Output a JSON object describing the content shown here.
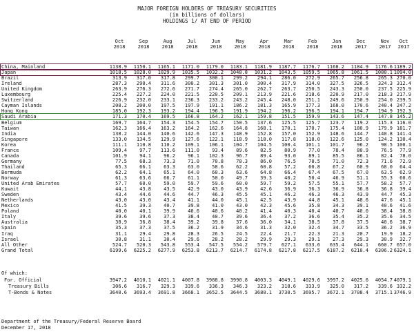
{
  "title_line1": "MAJOR FOREIGN HOLDERS OF TREASURY SECURITIES",
  "title_line2": "(in billions of dollars)",
  "title_line3": "HOLDINGS 1/ AT END OF PERIOD",
  "months": [
    "Oct",
    "Sep",
    "Aug",
    "Jul",
    "Jun",
    "May",
    "Apr",
    "Mar",
    "Feb",
    "Jan",
    "Dec",
    "Nov",
    "Oct"
  ],
  "years": [
    "2018",
    "2018",
    "2018",
    "2018",
    "2018",
    "2018",
    "2018",
    "2018",
    "2018",
    "2018",
    "2017",
    "2017",
    "2017"
  ],
  "highlight_colors": {
    "China, Mainland": "#6b1b46",
    "Japan": "#6b1b46",
    "Saudi Arabia": "#3e8a3e"
  },
  "rows": [
    {
      "label": "China, Mainland",
      "values": [
        "1138.9",
        "1150.1",
        "1165.1",
        "1171.0",
        "1179.0",
        "1183.1",
        "1181.9",
        "1187.7",
        "1176.7",
        "1168.2",
        "1184.9",
        "1176.6",
        "1189.2"
      ]
    },
    {
      "label": "Japan",
      "values": [
        "1018.5",
        "1028.0",
        "1029.9",
        "1035.5",
        "1032.2",
        "1048.8",
        "1031.2",
        "1043.5",
        "1059.5",
        "1065.8",
        "1061.5",
        "1080.1",
        "1094.0"
      ]
    },
    {
      "label": "Brazil",
      "values": [
        "313.9",
        "317.0",
        "317.8",
        "299.7",
        "300.1",
        "299.2",
        "294.1",
        "286.0",
        "272.9",
        "265.7",
        "256.8",
        "265.3",
        "270.0"
      ]
    },
    {
      "label": "Ireland",
      "values": [
        "287.3",
        "290.4",
        "311.6",
        "300.2",
        "301.3",
        "301.0",
        "300.4",
        "317.9",
        "314.0",
        "327.5",
        "326.5",
        "324.3",
        "312.4"
      ]
    },
    {
      "label": "United Kingdom",
      "values": [
        "263.9",
        "276.3",
        "272.6",
        "271.7",
        "274.4",
        "265.0",
        "262.7",
        "263.7",
        "250.5",
        "243.3",
        "250.0",
        "237.5",
        "225.9"
      ]
    },
    {
      "label": "Luxembourg",
      "values": [
        "225.4",
        "227.2",
        "224.0",
        "221.5",
        "220.5",
        "209.1",
        "213.9",
        "221.6",
        "218.6",
        "220.9",
        "217.0",
        "218.3",
        "217.9"
      ]
    },
    {
      "label": "Switzerland",
      "values": [
        "226.9",
        "232.0",
        "233.1",
        "236.3",
        "233.2",
        "243.2",
        "245.4",
        "248.0",
        "251.1",
        "249.6",
        "250.9",
        "254.0",
        "239.5"
      ]
    },
    {
      "label": "Cayman Islands",
      "values": [
        "208.2",
        "200.0",
        "197.5",
        "197.9",
        "191.1",
        "186.2",
        "181.3",
        "165.9",
        "177.3",
        "168.0",
        "170.6",
        "240.4",
        "247.2"
      ]
    },
    {
      "label": "Hong Kong",
      "values": [
        "185.0",
        "192.3",
        "193.2",
        "194.4",
        "196.5",
        "191.9",
        "194.2",
        "196.2",
        "196.5",
        "194.1",
        "194.7",
        "194.9",
        "192.3"
      ]
    },
    {
      "label": "Saudi Arabia",
      "values": [
        "171.3",
        "170.4",
        "169.5",
        "166.8",
        "164.2",
        "162.1",
        "159.8",
        "151.5",
        "159.9",
        "143.6",
        "147.4",
        "147.8",
        "145.2"
      ]
    },
    {
      "label": "Belgium",
      "values": [
        "169.7",
        "164.7",
        "154.3",
        "154.5",
        "154.7",
        "150.5",
        "137.6",
        "125.5",
        "125.7",
        "123.7",
        "119.2",
        "115.3",
        "116.0"
      ]
    },
    {
      "label": "Taiwan",
      "values": [
        "162.3",
        "166.4",
        "163.2",
        "164.2",
        "162.6",
        "164.8",
        "168.1",
        "170.1",
        "170.7",
        "175.4",
        "180.9",
        "179.9",
        "181.7"
      ]
    },
    {
      "label": "India",
      "values": [
        "138.2",
        "144.0",
        "140.6",
        "142.6",
        "147.3",
        "148.9",
        "152.8",
        "157.0",
        "152.9",
        "148.6",
        "144.7",
        "140.8",
        "141.4"
      ]
    },
    {
      "label": "Singapore",
      "values": [
        "133.0",
        "134.5",
        "129.9",
        "127.6",
        "122.1",
        "118.9",
        "118.0",
        "117.8",
        "118.0",
        "122.6",
        "125.0",
        "124.2",
        "130.4"
      ]
    },
    {
      "label": "Korea",
      "values": [
        "111.1",
        "110.8",
        "110.2",
        "109.1",
        "106.1",
        "104.7",
        "104.5",
        "100.4",
        "101.1",
        "101.7",
        "96.2",
        "98.5",
        "100.1"
      ]
    },
    {
      "label": "France",
      "values": [
        "109.4",
        "97.7",
        "113.6",
        "111.0",
        "93.4",
        "89.6",
        "82.5",
        "80.9",
        "77.0",
        "78.4",
        "80.9",
        "76.5",
        "77.9"
      ]
    },
    {
      "label": "Canada",
      "values": [
        "101.9",
        "94.1",
        "96.2",
        "96.1",
        "102.3",
        "96.7",
        "89.4",
        "93.0",
        "89.1",
        "85.5",
        "86.1",
        "82.4",
        "78.0"
      ]
    },
    {
      "label": "Germany",
      "values": [
        "77.5",
        "68.3",
        "73.3",
        "71.0",
        "70.8",
        "78.3",
        "86.0",
        "76.5",
        "78.5",
        "71.0",
        "72.3",
        "71.6",
        "72.9"
      ]
    },
    {
      "label": "Thailand",
      "values": [
        "65.3",
        "66.1",
        "63.3",
        "63.0",
        "58.6",
        "62.2",
        "60.8",
        "57.2",
        "60.8",
        "67.2",
        "60.9",
        "68.0",
        "64.4"
      ]
    },
    {
      "label": "Bermuda",
      "values": [
        "62.2",
        "64.1",
        "65.1",
        "64.0",
        "60.3",
        "63.6",
        "64.8",
        "66.4",
        "67.4",
        "67.5",
        "67.0",
        "63.5",
        "62.9"
      ]
    },
    {
      "label": "Norway",
      "values": [
        "61.3",
        "63.6",
        "66.7",
        "61.1",
        "50.0",
        "49.7",
        "39.3",
        "40.2",
        "50.4",
        "46.9",
        "51.1",
        "55.3",
        "60.6"
      ]
    },
    {
      "label": "United Arab Emirates",
      "values": [
        "57.7",
        "60.0",
        "59.0",
        "59.7",
        "59.6",
        "60.0",
        "59.7",
        "59.2",
        "57.5",
        "55.1",
        "57.7",
        "58.2",
        "57.7"
      ]
    },
    {
      "label": "Kuwait",
      "values": [
        "44.1",
        "43.8",
        "43.5",
        "42.9",
        "43.0",
        "43.9",
        "42.6",
        "36.9",
        "36.3",
        "36.9",
        "36.8",
        "36.8",
        "39.4"
      ]
    },
    {
      "label": "Sweden",
      "values": [
        "43.4",
        "44.6",
        "44.6",
        "44.7",
        "46.3",
        "45.5",
        "45.1",
        "46.2",
        "46.3",
        "46.3",
        "43.9",
        "44.7",
        "45.3"
      ]
    },
    {
      "label": "Netherlands",
      "values": [
        "43.0",
        "43.0",
        "43.4",
        "41.1",
        "44.0",
        "45.1",
        "42.5",
        "43.9",
        "44.8",
        "45.1",
        "48.6",
        "47.6",
        "45.1"
      ]
    },
    {
      "label": "Mexico",
      "values": [
        "41.5",
        "39.3",
        "40.7",
        "39.8",
        "41.0",
        "43.0",
        "42.3",
        "45.6",
        "35.8",
        "34.3",
        "39.1",
        "40.6",
        "41.6"
      ]
    },
    {
      "label": "Poland",
      "values": [
        "40.0",
        "40.1",
        "39.9",
        "40.6",
        "40.6",
        "40.2",
        "41.4",
        "40.3",
        "40.4",
        "40.7",
        "40.0",
        "38.4",
        "38.8"
      ]
    },
    {
      "label": "Italy",
      "values": [
        "39.6",
        "39.6",
        "37.3",
        "38.4",
        "40.7",
        "39.6",
        "36.4",
        "37.2",
        "36.6",
        "35.4",
        "35.2",
        "35.6",
        "34.5"
      ]
    },
    {
      "label": "Australia",
      "values": [
        "38.9",
        "36.8",
        "38.4",
        "39.2",
        "39.8",
        "37.6",
        "36.0",
        "34.1",
        "38.5",
        "37.8",
        "37.5",
        "40.6",
        "38.7"
      ]
    },
    {
      "label": "Spain",
      "values": [
        "35.3",
        "37.3",
        "37.5",
        "36.2",
        "31.9",
        "34.6",
        "31.3",
        "32.0",
        "32.4",
        "34.7",
        "33.5",
        "36.2",
        "36.9"
      ]
    },
    {
      "label": "Iraq",
      "values": [
        "31.1",
        "29.4",
        "29.8",
        "28.3",
        "26.5",
        "24.5",
        "22.4",
        "21.7",
        "22.3",
        "21.3",
        "20.7",
        "19.9",
        "18.2"
      ]
    },
    {
      "label": "Israel",
      "values": [
        "30.8",
        "31.1",
        "30.4",
        "29.6",
        "28.2",
        "28.2",
        "29.9",
        "29.3",
        "29.1",
        "27.3",
        "29.3",
        "30.9",
        "32.7"
      ]
    },
    {
      "label": "All Other",
      "values": [
        "524.7",
        "520.3",
        "543.8",
        "553.4",
        "547.5",
        "554.2",
        "579.7",
        "627.1",
        "633.6",
        "635.4",
        "644.1",
        "660.7",
        "657.0"
      ]
    },
    {
      "label": "Grand Total",
      "values": [
        "6199.6",
        "6225.2",
        "6277.9",
        "6253.8",
        "6213.7",
        "6214.7",
        "6174.8",
        "6217.8",
        "6217.5",
        "6187.2",
        "6210.4",
        "6306.2",
        "6324.1"
      ]
    }
  ],
  "of_which_label": "Of which:",
  "of_which_rows": [
    {
      "label": "For. Official",
      "values": [
        "3947.2",
        "4010.1",
        "4021.1",
        "4007.8",
        "3988.8",
        "3990.8",
        "4003.3",
        "4049.1",
        "4029.6",
        "3997.2",
        "4025.6",
        "4054.7",
        "4079.1"
      ]
    },
    {
      "label": "Treasury Bills",
      "values": [
        "306.6",
        "316.7",
        "329.3",
        "339.6",
        "336.3",
        "346.3",
        "323.2",
        "318.6",
        "333.9",
        "325.0",
        "317.2",
        "339.6",
        "332.2"
      ]
    },
    {
      "label": "T-Bonds & Notes",
      "values": [
        "3640.6",
        "3693.4",
        "3691.8",
        "3668.1",
        "3652.5",
        "3644.5",
        "3680.1",
        "3730.5",
        "3695.7",
        "3672.1",
        "3708.4",
        "3715.1",
        "3746.9"
      ]
    }
  ],
  "footer_line1": "Department of the Treasury/Federal Reserve Board",
  "footer_line2": "December 17, 2018"
}
